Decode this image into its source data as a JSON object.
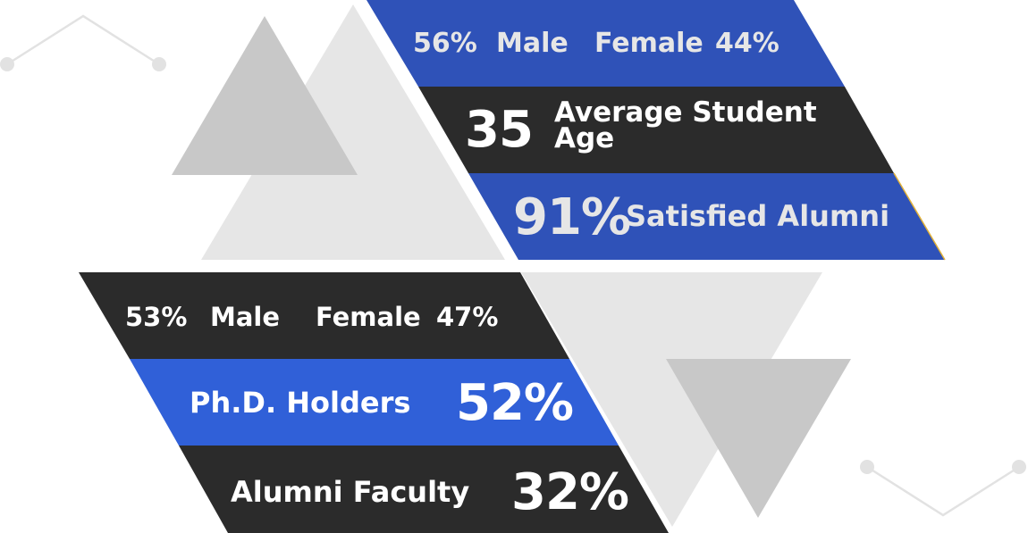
{
  "colors": {
    "blue": "#2f52b8",
    "blue_bright": "#3060d8",
    "dark": "#2b2b2b",
    "tri_light": "#e6e6e6",
    "tri_mid": "#c8c8c8",
    "deco_line": "#e2e2e2",
    "text_light": "#f0f0f0"
  },
  "students": {
    "gender": {
      "male_pct": "56%",
      "male_label": "Male",
      "female_label": "Female",
      "female_pct": "44%"
    },
    "age": {
      "value": "35",
      "label_line1": "Average Student",
      "label_line2": "Age"
    },
    "satisfaction": {
      "value": "91%",
      "label": "Satisfied Alumni"
    }
  },
  "faculty": {
    "gender": {
      "male_pct": "53%",
      "male_label": "Male",
      "female_label": "Female",
      "female_pct": "47%"
    },
    "phd": {
      "label": "Ph.D. Holders",
      "value": "52%"
    },
    "alumni": {
      "label": "Alumni Faculty",
      "value": "32%"
    }
  }
}
